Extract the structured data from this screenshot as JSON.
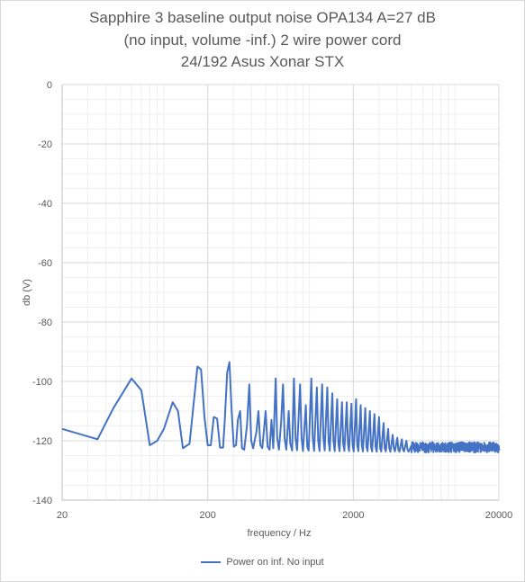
{
  "chart_data": {
    "type": "line",
    "title_lines": [
      "Sapphire 3 baseline output noise OPA134 A=27 dB",
      "(no input, volume -inf.) 2 wire power cord",
      "24/192 Asus Xonar STX"
    ],
    "xlabel": "frequency / Hz",
    "ylabel": "db (V)",
    "xscale": "log",
    "xlim": [
      20,
      20000
    ],
    "ylim": [
      -140,
      0
    ],
    "xticks": [
      20,
      200,
      2000,
      20000
    ],
    "yticks": [
      0,
      -20,
      -40,
      -60,
      -80,
      -100,
      -120,
      -140
    ],
    "grid": true,
    "legend_position": "bottom",
    "series": [
      {
        "name": "Power on inf. No input",
        "color": "#4472c4",
        "points": [
          [
            20,
            -116
          ],
          [
            35,
            -119.5
          ],
          [
            45,
            -109
          ],
          [
            60,
            -99
          ],
          [
            70,
            -103
          ],
          [
            80,
            -121.5
          ],
          [
            90,
            -120
          ],
          [
            100,
            -116
          ],
          [
            115,
            -107
          ],
          [
            125,
            -110
          ],
          [
            135,
            -122.5
          ],
          [
            150,
            -121
          ],
          [
            170,
            -95
          ],
          [
            180,
            -96
          ],
          [
            190,
            -112
          ],
          [
            200,
            -121.5
          ],
          [
            210,
            -121.5
          ],
          [
            220,
            -112
          ],
          [
            232,
            -112.5
          ],
          [
            243,
            -122.3
          ],
          [
            255,
            -122.3
          ],
          [
            262,
            -113
          ],
          [
            272,
            -97
          ],
          [
            282,
            -93.5
          ],
          [
            292,
            -110
          ],
          [
            302,
            -122
          ],
          [
            313,
            -121.5
          ],
          [
            322,
            -113
          ],
          [
            334,
            -110
          ],
          [
            344,
            -122.5
          ],
          [
            356,
            -123
          ],
          [
            372,
            -115
          ],
          [
            386,
            -101
          ],
          [
            398,
            -120
          ],
          [
            410,
            -122.5
          ],
          [
            432,
            -117
          ],
          [
            446,
            -110
          ],
          [
            460,
            -121.5
          ],
          [
            474,
            -122.5
          ],
          [
            500,
            -110
          ],
          [
            516,
            -122
          ],
          [
            532,
            -123
          ],
          [
            548,
            -113
          ],
          [
            564,
            -122.5
          ],
          [
            586,
            -99
          ],
          [
            600,
            -119
          ],
          [
            617,
            -123
          ],
          [
            640,
            -113
          ],
          [
            658,
            -101
          ],
          [
            675,
            -119
          ],
          [
            693,
            -123
          ],
          [
            720,
            -110
          ],
          [
            738,
            -121
          ],
          [
            760,
            -123.3
          ],
          [
            782,
            -99
          ],
          [
            802,
            -119
          ],
          [
            822,
            -123.2
          ],
          [
            862,
            -101
          ],
          [
            882,
            -119
          ],
          [
            902,
            -123.5
          ],
          [
            944,
            -108
          ],
          [
            965,
            -122
          ],
          [
            987,
            -123.3
          ],
          [
            1030,
            -99
          ],
          [
            1053,
            -119
          ],
          [
            1076,
            -123.4
          ],
          [
            1124,
            -102
          ],
          [
            1148,
            -120
          ],
          [
            1172,
            -123.5
          ],
          [
            1222,
            -101
          ],
          [
            1247,
            -119
          ],
          [
            1272,
            -123.3
          ],
          [
            1326,
            -102
          ],
          [
            1352,
            -120
          ],
          [
            1378,
            -123.4
          ],
          [
            1435,
            -104
          ],
          [
            1462,
            -120
          ],
          [
            1490,
            -123.5
          ],
          [
            1550,
            -106
          ],
          [
            1580,
            -121
          ],
          [
            1610,
            -123.5
          ],
          [
            1673,
            -107
          ],
          [
            1705,
            -121
          ],
          [
            1737,
            -123.4
          ],
          [
            1804,
            -107
          ],
          [
            1837,
            -121
          ],
          [
            1870,
            -123.5
          ],
          [
            1942,
            -107.5
          ],
          [
            1978,
            -121.5
          ],
          [
            2014,
            -123.6
          ],
          [
            2090,
            -106
          ],
          [
            2128,
            -121.5
          ],
          [
            2166,
            -123.5
          ],
          [
            2248,
            -108
          ],
          [
            2288,
            -121.5
          ],
          [
            2328,
            -123.6
          ],
          [
            2418,
            -109
          ],
          [
            2462,
            -122
          ],
          [
            2506,
            -123.5
          ],
          [
            2600,
            -110
          ],
          [
            2646,
            -122
          ],
          [
            2692,
            -123.6
          ],
          [
            2795,
            -111
          ],
          [
            2845,
            -122
          ],
          [
            2895,
            -123.7
          ],
          [
            3005,
            -112
          ],
          [
            3058,
            -122.5
          ],
          [
            3111,
            -123.6
          ],
          [
            3230,
            -114
          ],
          [
            3287,
            -122.5
          ],
          [
            3344,
            -123.6
          ],
          [
            3471,
            -116
          ],
          [
            3533,
            -122.5
          ],
          [
            3595,
            -123.7
          ],
          [
            3730,
            -118
          ],
          [
            3797,
            -122.5
          ],
          [
            3864,
            -123.6
          ],
          [
            4010,
            -119
          ],
          [
            4081,
            -123
          ],
          [
            4152,
            -123.7
          ],
          [
            4310,
            -119.5
          ],
          [
            4387,
            -123
          ],
          [
            4464,
            -123.6
          ],
          [
            4630,
            -120
          ],
          [
            4713,
            -123
          ],
          [
            4796,
            -123.7
          ],
          [
            5150,
            -120.5
          ],
          [
            5500,
            -123.3
          ],
          [
            6000,
            -120.5
          ],
          [
            6500,
            -123.4
          ],
          [
            7000,
            -120.8
          ],
          [
            7600,
            -123.2
          ],
          [
            8200,
            -120.7
          ],
          [
            8900,
            -123.4
          ],
          [
            9600,
            -121
          ],
          [
            10400,
            -123.3
          ],
          [
            11200,
            -121
          ],
          [
            12100,
            -123.5
          ],
          [
            13000,
            -121
          ],
          [
            14000,
            -123.4
          ],
          [
            15000,
            -121
          ],
          [
            16000,
            -123.5
          ],
          [
            17000,
            -121.2
          ],
          [
            18000,
            -123.4
          ],
          [
            19000,
            -121.3
          ],
          [
            20000,
            -123
          ]
        ]
      }
    ]
  }
}
